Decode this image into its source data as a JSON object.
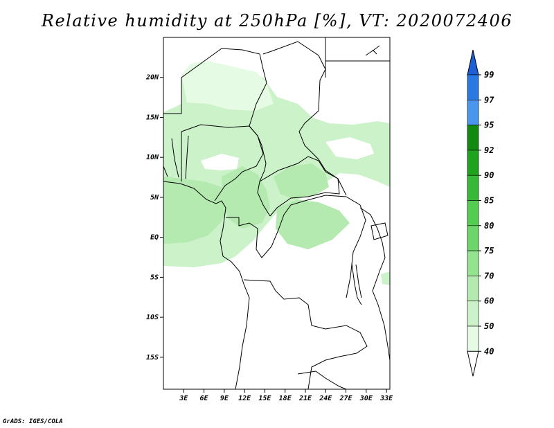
{
  "title": "Relative humidity at 250hPa [%], VT: 2020072406",
  "footer": "GrADS: IGES/COLA",
  "map": {
    "lat_range": [
      -19,
      25
    ],
    "lon_range": [
      0,
      33.5
    ],
    "lat_ticks": [
      "20N",
      "15N",
      "10N",
      "5N",
      "EQ",
      "5S",
      "10S",
      "15S"
    ],
    "lat_tick_values": [
      20,
      15,
      10,
      5,
      0,
      -5,
      -10,
      -15
    ],
    "lon_ticks": [
      "3E",
      "6E",
      "9E",
      "12E",
      "15E",
      "18E",
      "21E",
      "24E",
      "27E",
      "30E",
      "33E"
    ],
    "lon_tick_values": [
      3,
      6,
      9,
      12,
      15,
      18,
      21,
      24,
      27,
      30,
      33
    ]
  },
  "colorbar": {
    "labels": [
      "99",
      "97",
      "95",
      "92",
      "90",
      "85",
      "80",
      "75",
      "70",
      "60",
      "50",
      "40"
    ],
    "colors": [
      "#1c5fd6",
      "#2a78e4",
      "#4a95ee",
      "#118a11",
      "#1fa31f",
      "#37b836",
      "#52cd4f",
      "#6dd66b",
      "#93e38f",
      "#b4eab0",
      "#cbf2c8",
      "#e6fbe3",
      "#ffffff"
    ]
  }
}
